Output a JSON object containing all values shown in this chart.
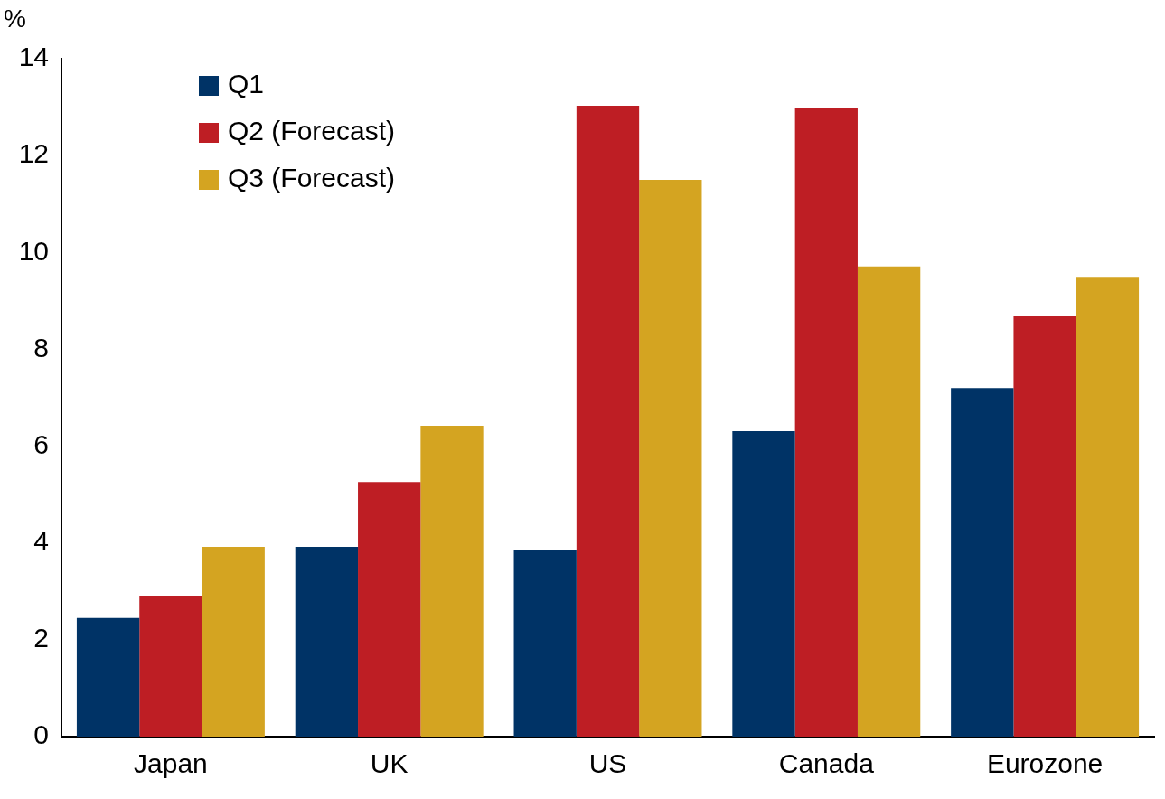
{
  "chart_data": {
    "type": "bar",
    "ylabel": "%",
    "categories": [
      "Japan",
      "UK",
      "US",
      "Canada",
      "Eurozone"
    ],
    "series": [
      {
        "name": "Q1",
        "color": "#003366",
        "values": [
          2.45,
          3.92,
          3.85,
          6.31,
          7.2
        ]
      },
      {
        "name": "Q2 (Forecast)",
        "color": "#be1e24",
        "values": [
          2.91,
          5.26,
          13.03,
          12.99,
          8.68
        ]
      },
      {
        "name": "Q3 (Forecast)",
        "color": "#d4a421",
        "values": [
          3.92,
          6.42,
          11.5,
          9.71,
          9.48
        ]
      }
    ],
    "ylim": [
      0,
      14
    ],
    "yticks": [
      0,
      2,
      4,
      6,
      8,
      10,
      12,
      14
    ],
    "grid": false,
    "legend": "top left"
  }
}
